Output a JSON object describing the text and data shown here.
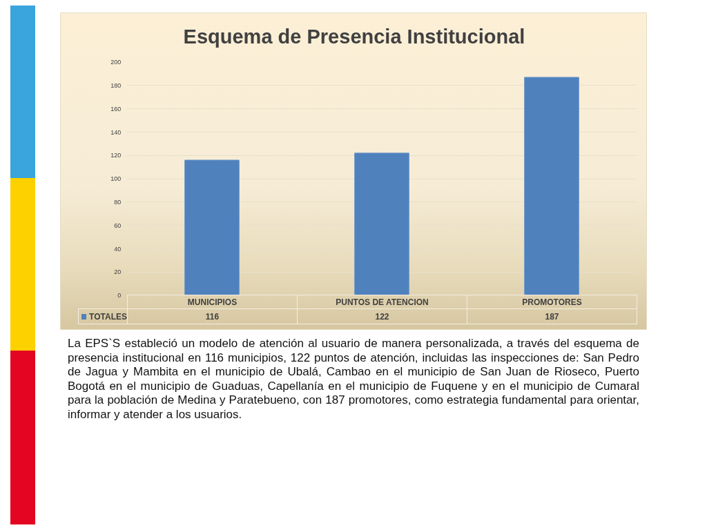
{
  "chart_data": {
    "type": "bar",
    "title": "Esquema de Presencia Institucional",
    "categories": [
      "MUNICIPIOS",
      "PUNTOS DE ATENCION",
      "PROMOTORES"
    ],
    "series": [
      {
        "name": "TOTALES",
        "color": "#4f81bd",
        "values": [
          116,
          122,
          187
        ]
      }
    ],
    "ylim": [
      0,
      200
    ],
    "yticks": [
      0,
      20,
      40,
      60,
      80,
      100,
      120,
      140,
      160,
      180,
      200
    ],
    "grid": "y",
    "legend": "bottom",
    "data_labels": true,
    "annotations": [
      "La EPS`S estableció un modelo de atención al usuario de manera personalizada, a través del esquema de presencia institucional en 116 municipios, 122 puntos de atención, incluidas las inspecciones de: San Pedro de Jagua y Mambita en el municipio de Ubalá, Cambao en el municipio de San Juan de Rioseco, Puerto Bogotá en el municipio de Guaduas, Capellanía en el municipio de Fuquene y en el municipio de Cumaral para la población de Medina y Paratebueno, con 187 promotores, como estrategia fundamental para orientar, informar y atender a los usuarios."
    ]
  }
}
